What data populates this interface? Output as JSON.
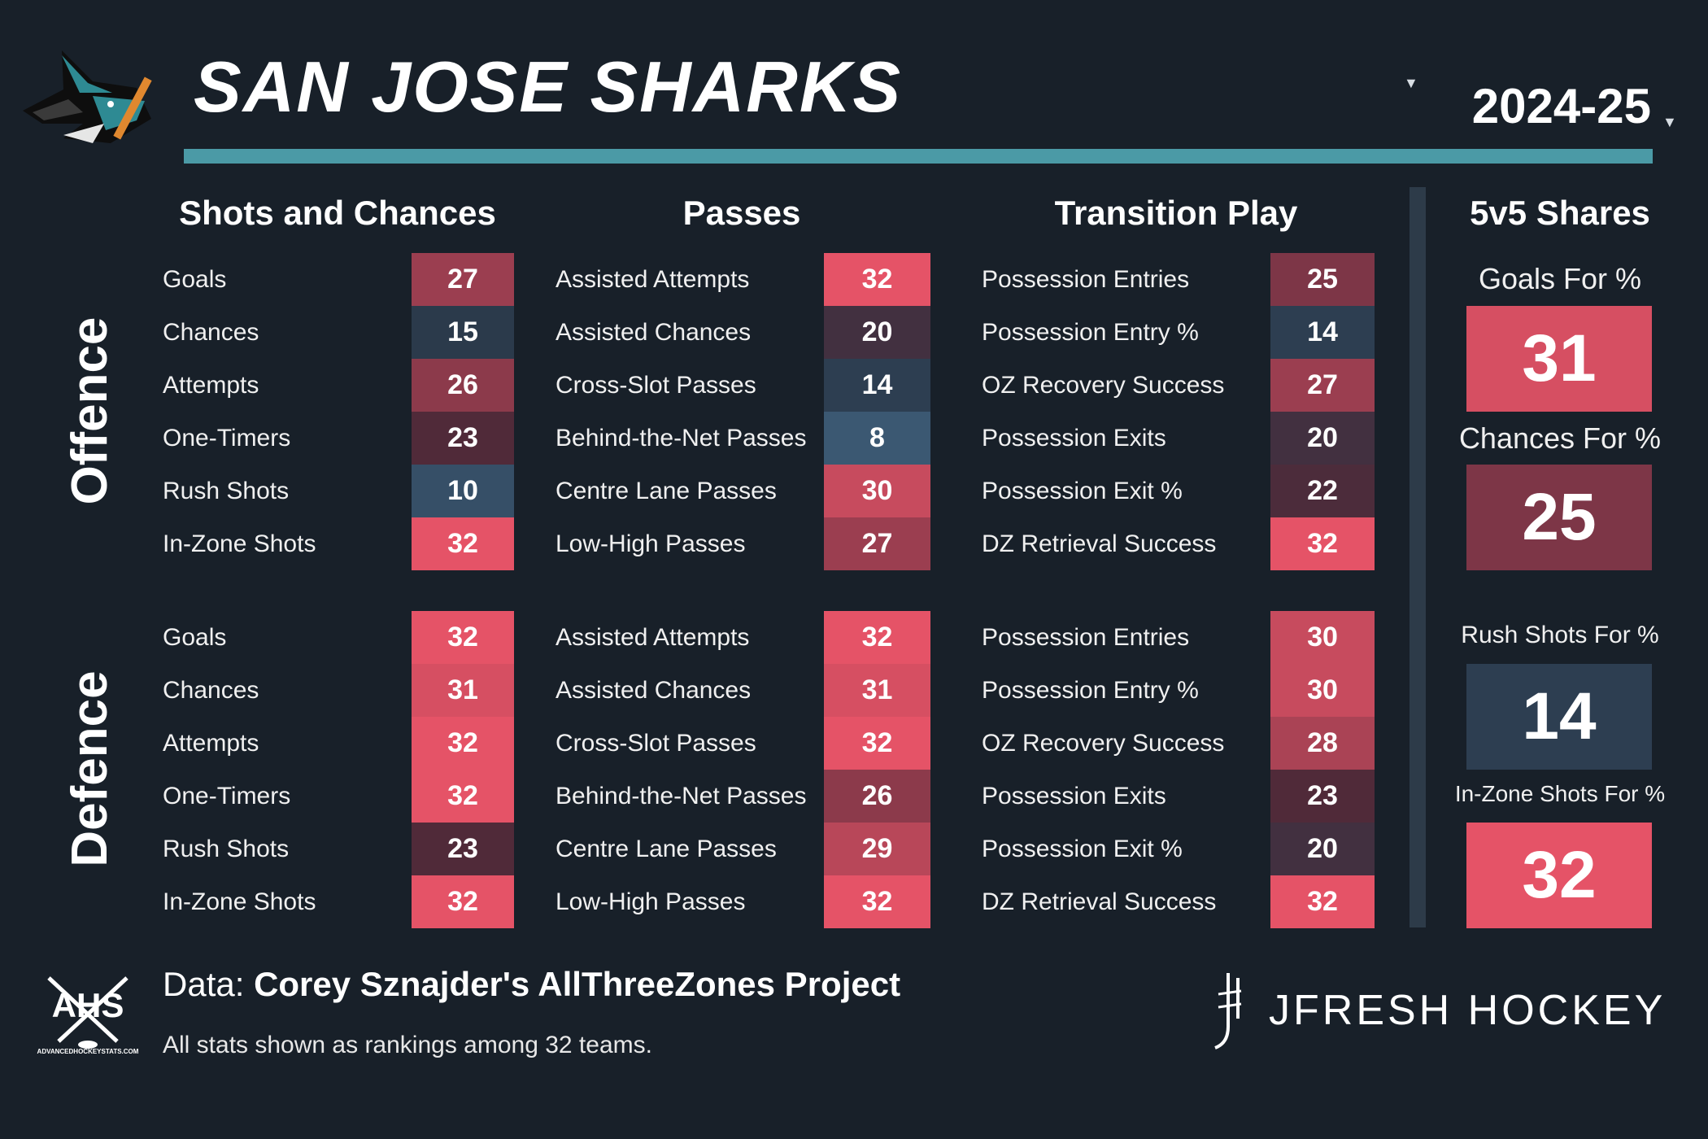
{
  "header": {
    "team": "SAN JOSE SHARKS",
    "season": "2024-25",
    "logo_icon": "sharks-logo-icon",
    "dropdown_icon": "chevron-down-icon"
  },
  "sections": {
    "shots": "Shots and Chances",
    "passes": "Passes",
    "transition": "Transition Play",
    "shares": "5v5 Shares"
  },
  "side_labels": {
    "offence": "Offence",
    "defence": "Defence"
  },
  "offence": {
    "shots": [
      {
        "label": "Goals",
        "rank": "27"
      },
      {
        "label": "Chances",
        "rank": "15"
      },
      {
        "label": "Attempts",
        "rank": "26"
      },
      {
        "label": "One-Timers",
        "rank": "23"
      },
      {
        "label": "Rush Shots",
        "rank": "10"
      },
      {
        "label": "In-Zone Shots",
        "rank": "32"
      }
    ],
    "passes": [
      {
        "label": "Assisted Attempts",
        "rank": "32"
      },
      {
        "label": "Assisted Chances",
        "rank": "20"
      },
      {
        "label": "Cross-Slot Passes",
        "rank": "14"
      },
      {
        "label": "Behind-the-Net Passes",
        "rank": "8"
      },
      {
        "label": "Centre Lane Passes",
        "rank": "30"
      },
      {
        "label": "Low-High Passes",
        "rank": "27"
      }
    ],
    "transition": [
      {
        "label": "Possession Entries",
        "rank": "25"
      },
      {
        "label": "Possession Entry %",
        "rank": "14"
      },
      {
        "label": "OZ Recovery Success",
        "rank": "27"
      },
      {
        "label": "Possession Exits",
        "rank": "20"
      },
      {
        "label": "Possession Exit %",
        "rank": "22"
      },
      {
        "label": "DZ Retrieval Success",
        "rank": "32"
      }
    ]
  },
  "defence": {
    "shots": [
      {
        "label": "Goals",
        "rank": "32"
      },
      {
        "label": "Chances",
        "rank": "31"
      },
      {
        "label": "Attempts",
        "rank": "32"
      },
      {
        "label": "One-Timers",
        "rank": "32"
      },
      {
        "label": "Rush Shots",
        "rank": "23"
      },
      {
        "label": "In-Zone Shots",
        "rank": "32"
      }
    ],
    "passes": [
      {
        "label": "Assisted Attempts",
        "rank": "32"
      },
      {
        "label": "Assisted Chances",
        "rank": "31"
      },
      {
        "label": "Cross-Slot Passes",
        "rank": "32"
      },
      {
        "label": "Behind-the-Net Passes",
        "rank": "26"
      },
      {
        "label": "Centre Lane Passes",
        "rank": "29"
      },
      {
        "label": "Low-High Passes",
        "rank": "32"
      }
    ],
    "transition": [
      {
        "label": "Possession Entries",
        "rank": "30"
      },
      {
        "label": "Possession Entry %",
        "rank": "30"
      },
      {
        "label": "OZ Recovery Success",
        "rank": "28"
      },
      {
        "label": "Possession Exits",
        "rank": "23"
      },
      {
        "label": "Possession Exit %",
        "rank": "20"
      },
      {
        "label": "DZ Retrieval Success",
        "rank": "32"
      }
    ]
  },
  "shares": [
    {
      "label": "Goals For %",
      "rank": "31"
    },
    {
      "label": "Chances For %",
      "rank": "25"
    },
    {
      "label": "Rush Shots For %",
      "rank": "14"
    },
    {
      "label": "In-Zone Shots For %",
      "rank": "32"
    }
  ],
  "footer": {
    "data_prefix": "Data:",
    "data_source": "Corey Sznajder's AllThreeZones Project",
    "note": "All stats shown as rankings among 32 teams.",
    "ahs_text": "AHS",
    "ahs_url": "ADVANCEDHOCKEYSTATS.COM",
    "brand": "JFRESH HOCKEY"
  },
  "colors": {
    "background": "#182029",
    "accent_rule": "#4b9aa6",
    "rank_best": "#4a7599",
    "rank_mid": "#2b3a4b",
    "rank_worst": "#e55367"
  }
}
